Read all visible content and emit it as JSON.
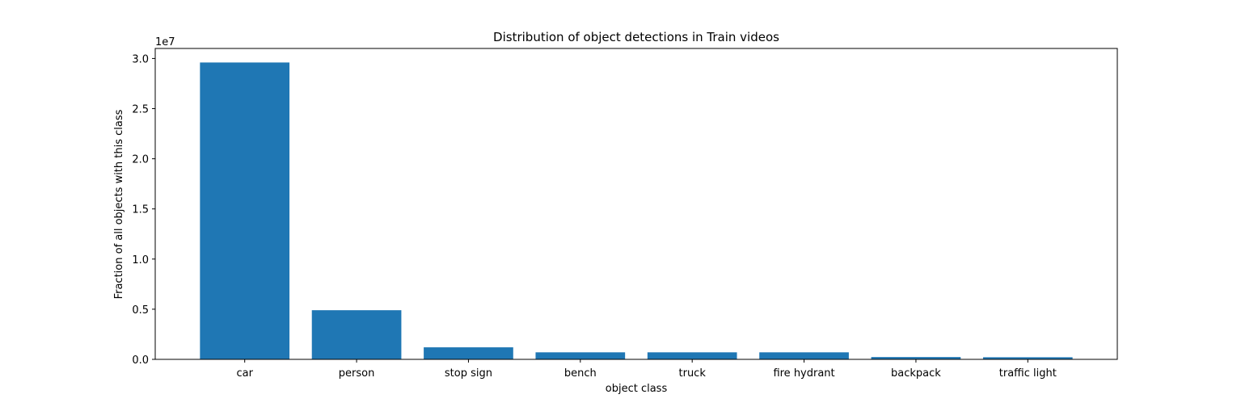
{
  "chart_data": {
    "type": "bar",
    "title": "Distribution of object detections in Train videos",
    "xlabel": "object class",
    "ylabel": "Fraction of all objects with this class",
    "y_offset_label": "1e7",
    "y_scale": 10000000,
    "ylim": [
      0,
      31000000
    ],
    "yticks": [
      0,
      5000000,
      10000000,
      15000000,
      20000000,
      25000000,
      30000000
    ],
    "ytick_labels": [
      "0.0",
      "0.5",
      "1.0",
      "1.5",
      "2.0",
      "2.5",
      "3.0"
    ],
    "categories": [
      "car",
      "person",
      "stop sign",
      "bench",
      "truck",
      "fire hydrant",
      "backpack",
      "traffic light"
    ],
    "values": [
      29600000,
      4900000,
      1200000,
      700000,
      700000,
      700000,
      230000,
      210000
    ],
    "bar_color": "#1f77b4",
    "grid": false,
    "legend": "none"
  }
}
